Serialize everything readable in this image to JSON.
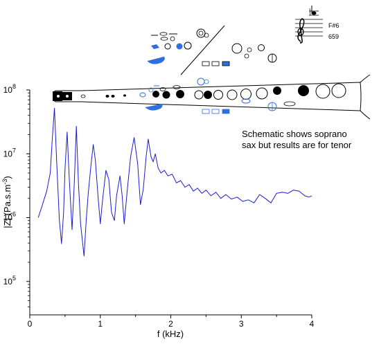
{
  "chart_data": {
    "type": "line",
    "title": "",
    "xlabel": "f (kHz)",
    "ylabel_parts": [
      "|Z| (Pa.s.m",
      "-3",
      ")"
    ],
    "x_scale": "linear",
    "y_scale": "log",
    "xlim": [
      0,
      4
    ],
    "ylim": [
      30000,
      100000000
    ],
    "x_ticks": [
      0,
      1,
      2,
      3,
      4
    ],
    "x_tick_labels": [
      "0",
      "1",
      "2",
      "3",
      "4"
    ],
    "y_ticks": [
      {
        "mantissa": "10",
        "exponent": "5",
        "value": 100000
      },
      {
        "mantissa": "10",
        "exponent": "6",
        "value": 1000000
      },
      {
        "mantissa": "10",
        "exponent": "7",
        "value": 10000000
      },
      {
        "mantissa": "10",
        "exponent": "8",
        "value": 100000000
      }
    ],
    "grid": false,
    "line_color": "#1a1ad6",
    "series": [
      {
        "x": [
          0.12,
          0.18,
          0.24,
          0.29,
          0.32,
          0.35,
          0.38,
          0.42,
          0.45,
          0.48,
          0.5,
          0.53,
          0.56,
          0.6,
          0.63,
          0.66,
          0.69,
          0.72,
          0.77,
          0.8,
          0.83,
          0.87,
          0.9,
          0.93,
          0.97,
          1.0,
          1.03,
          1.08,
          1.12,
          1.16,
          1.2,
          1.23,
          1.28,
          1.31,
          1.34,
          1.38,
          1.43,
          1.48,
          1.53,
          1.57,
          1.61,
          1.65,
          1.68,
          1.72,
          1.75,
          1.78,
          1.82,
          1.86,
          1.91,
          1.96,
          2.02,
          2.08,
          2.14,
          2.2,
          2.26,
          2.32,
          2.38,
          2.44,
          2.5,
          2.57,
          2.64,
          2.71,
          2.78,
          2.86,
          2.94,
          3.02,
          3.1,
          3.18,
          3.26,
          3.34,
          3.42,
          3.5,
          3.58,
          3.66,
          3.74,
          3.82,
          3.9,
          3.96,
          4.0
        ],
        "y": [
          1000000,
          1600000,
          2600000,
          5000000,
          18000000,
          52000000,
          8000000,
          900000,
          390000,
          1200000,
          6000000,
          22000000,
          4000000,
          650000,
          3200000,
          27000000,
          3500000,
          800000,
          250000,
          900000,
          2500000,
          7000000,
          14000000,
          8000000,
          2000000,
          800000,
          1800000,
          5500000,
          4000000,
          1200000,
          900000,
          2200000,
          4500000,
          2200000,
          800000,
          2500000,
          9000000,
          18000000,
          7000000,
          1600000,
          2800000,
          9000000,
          17000000,
          9000000,
          7500000,
          10000000,
          6000000,
          5000000,
          5500000,
          4500000,
          4800000,
          3500000,
          3800000,
          3000000,
          3300000,
          2600000,
          2900000,
          2400000,
          2700000,
          2200000,
          2500000,
          2000000,
          2300000,
          1950000,
          2100000,
          1800000,
          1900000,
          1700000,
          2300000,
          2000000,
          1700000,
          2400000,
          2500000,
          2400000,
          2700000,
          2600000,
          2200000,
          2100000,
          2200000
        ]
      }
    ]
  },
  "annotation": {
    "lines": [
      "Schematic shows soprano",
      "sax but results are for tenor"
    ]
  },
  "note_box": {
    "note": "F#6",
    "frequency": "659"
  }
}
